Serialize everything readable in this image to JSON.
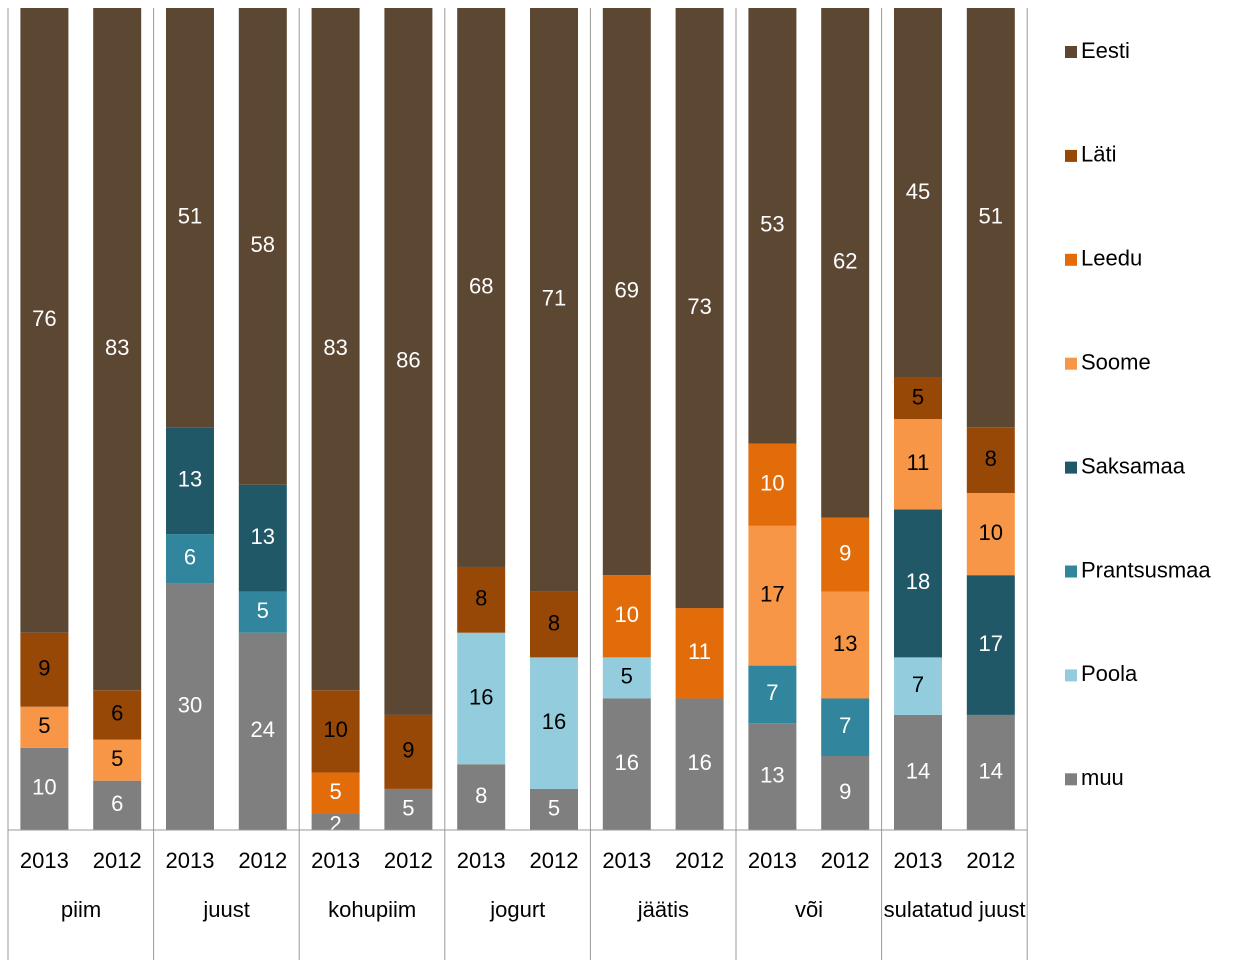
{
  "chart_data": {
    "type": "stacked_bar",
    "groups": [
      "piim",
      "juust",
      "kohupiim",
      "jogurt",
      "jäätis",
      "või",
      "sulatatud juust"
    ],
    "categories": [
      "2013",
      "2012",
      "2013",
      "2012",
      "2013",
      "2012",
      "2013",
      "2012",
      "2013",
      "2012",
      "2013",
      "2012",
      "2013",
      "2012"
    ],
    "series": [
      {
        "name": "muu",
        "color": "#7f7f7f",
        "values": [
          10,
          6,
          30,
          24,
          2,
          5,
          8,
          5,
          16,
          16,
          13,
          9,
          14,
          14
        ]
      },
      {
        "name": "Poola",
        "color": "#93cddd",
        "values": [
          null,
          null,
          null,
          null,
          null,
          null,
          16,
          16,
          5,
          null,
          null,
          null,
          7,
          null
        ]
      },
      {
        "name": "Prantsusmaa",
        "color": "#31859c",
        "values": [
          null,
          null,
          6,
          5,
          null,
          null,
          null,
          null,
          null,
          null,
          7,
          7,
          null,
          null
        ]
      },
      {
        "name": "Saksamaa",
        "color": "#215868",
        "values": [
          null,
          null,
          13,
          13,
          null,
          null,
          null,
          null,
          null,
          null,
          null,
          null,
          18,
          17
        ]
      },
      {
        "name": "Soome",
        "color": "#f79646",
        "values": [
          5,
          5,
          null,
          null,
          null,
          null,
          null,
          null,
          null,
          null,
          17,
          13,
          11,
          10
        ]
      },
      {
        "name": "Leedu",
        "color": "#e36c0a",
        "values": [
          null,
          null,
          null,
          null,
          5,
          null,
          null,
          null,
          10,
          11,
          10,
          9,
          null,
          null
        ]
      },
      {
        "name": "Läti",
        "color": "#974706",
        "values": [
          9,
          6,
          null,
          null,
          10,
          9,
          8,
          8,
          null,
          null,
          null,
          null,
          5,
          8
        ]
      },
      {
        "name": "Eesti",
        "color": "#5c4733",
        "values": [
          76,
          83,
          51,
          58,
          83,
          86,
          68,
          71,
          69,
          73,
          53,
          62,
          45,
          51
        ]
      }
    ]
  }
}
